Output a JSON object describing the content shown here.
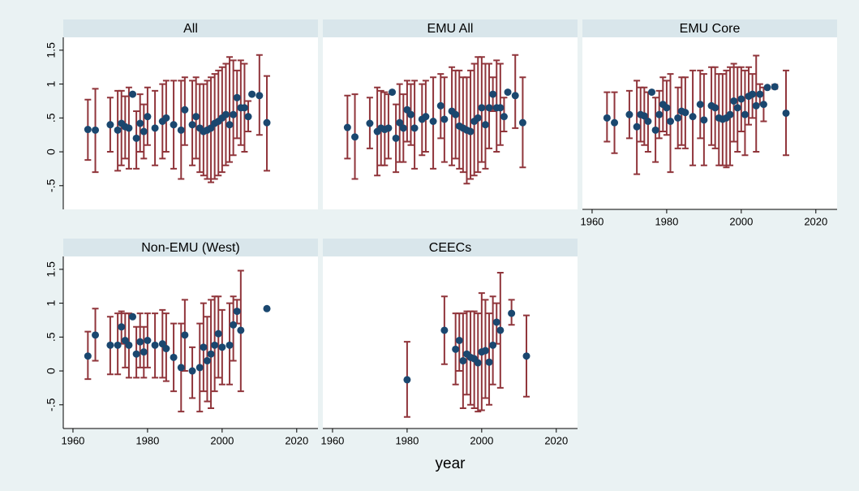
{
  "chart_data": [
    {
      "type": "scatter",
      "title": "All",
      "xlim": [
        1957.4,
        2025.7
      ],
      "ylim": [
        -0.85,
        1.69
      ],
      "yticks": [
        {
          "value": -0.5,
          "label": "-.5"
        },
        0,
        {
          "value": 0.5,
          "label": ".5"
        },
        1,
        1.5
      ],
      "point_color": "#1a476f",
      "bar_color": "#90353b",
      "x": [
        1964,
        1966,
        1970,
        1972,
        1973,
        1974,
        1975,
        1976,
        1977,
        1978,
        1979,
        1980,
        1982,
        1984,
        1985,
        1987,
        1989,
        1990,
        1992,
        1993,
        1994,
        1995,
        1996,
        1997,
        1998,
        1999,
        2000,
        2001,
        2002,
        2003,
        2004,
        2005,
        2006,
        2007,
        2008,
        2010,
        2012
      ],
      "values": [
        0.33,
        0.32,
        0.4,
        0.32,
        0.42,
        0.37,
        0.35,
        0.85,
        0.2,
        0.42,
        0.3,
        0.52,
        0.35,
        0.45,
        0.5,
        0.4,
        0.32,
        0.62,
        0.4,
        0.52,
        0.35,
        0.3,
        0.32,
        0.35,
        0.42,
        0.45,
        0.5,
        0.55,
        0.4,
        0.55,
        0.8,
        0.65,
        0.65,
        0.52,
        0.85,
        0.83,
        0.43
      ],
      "lower": [
        -0.12,
        -0.3,
        0.0,
        -0.28,
        -0.2,
        -0.1,
        -0.25,
        0.85,
        -0.25,
        0.0,
        -0.1,
        0.1,
        -0.2,
        -0.1,
        0.0,
        -0.25,
        -0.4,
        0.1,
        -0.2,
        -0.1,
        -0.3,
        -0.35,
        -0.4,
        -0.45,
        -0.4,
        -0.35,
        -0.3,
        -0.2,
        -0.15,
        -0.05,
        0.2,
        0.1,
        0.0,
        0.3,
        0.85,
        0.25,
        -0.28
      ],
      "upper": [
        0.77,
        0.93,
        0.8,
        0.9,
        0.9,
        0.82,
        0.95,
        0.85,
        0.6,
        0.85,
        0.7,
        0.95,
        0.9,
        1.0,
        1.05,
        1.05,
        1.05,
        1.1,
        1.05,
        1.1,
        1.0,
        1.0,
        1.05,
        1.1,
        1.15,
        1.2,
        1.25,
        1.3,
        1.4,
        1.35,
        1.2,
        1.35,
        1.3,
        0.75,
        0.85,
        1.43,
        1.12
      ]
    },
    {
      "type": "scatter",
      "title": "EMU All",
      "xlim": [
        1957.4,
        2025.7
      ],
      "ylim": [
        -0.85,
        1.69
      ],
      "point_color": "#1a476f",
      "bar_color": "#90353b",
      "x": [
        1964,
        1966,
        1970,
        1972,
        1973,
        1974,
        1975,
        1976,
        1977,
        1978,
        1979,
        1980,
        1981,
        1982,
        1984,
        1985,
        1987,
        1989,
        1990,
        1992,
        1993,
        1994,
        1995,
        1996,
        1997,
        1998,
        1999,
        2000,
        2001,
        2002,
        2003,
        2004,
        2005,
        2006,
        2007,
        2009,
        2011
      ],
      "values": [
        0.36,
        0.22,
        0.42,
        0.3,
        0.35,
        0.33,
        0.35,
        0.88,
        0.2,
        0.43,
        0.35,
        0.62,
        0.55,
        0.35,
        0.48,
        0.52,
        0.45,
        0.68,
        0.48,
        0.6,
        0.55,
        0.38,
        0.35,
        0.32,
        0.3,
        0.45,
        0.5,
        0.65,
        0.4,
        0.65,
        0.85,
        0.65,
        0.65,
        0.52,
        0.88,
        0.83,
        0.43
      ],
      "lower": [
        -0.1,
        -0.4,
        0.05,
        -0.35,
        -0.2,
        -0.2,
        -0.1,
        0.88,
        -0.3,
        -0.15,
        -0.15,
        0.15,
        0.1,
        -0.25,
        -0.05,
        0.0,
        -0.25,
        0.2,
        -0.15,
        -0.2,
        -0.1,
        -0.25,
        -0.3,
        -0.47,
        -0.4,
        -0.35,
        -0.3,
        -0.15,
        -0.25,
        0.05,
        0.6,
        0.0,
        0.1,
        0.3,
        0.88,
        0.35,
        -0.23
      ],
      "upper": [
        0.83,
        0.85,
        0.8,
        0.95,
        0.9,
        0.88,
        0.85,
        0.88,
        0.7,
        1.0,
        0.85,
        1.05,
        1.0,
        1.05,
        1.0,
        1.05,
        1.1,
        1.15,
        1.1,
        1.25,
        1.2,
        1.2,
        1.1,
        1.1,
        1.2,
        1.3,
        1.4,
        1.4,
        1.3,
        1.3,
        1.1,
        1.35,
        1.3,
        0.8,
        0.88,
        1.43,
        1.1
      ]
    },
    {
      "type": "scatter",
      "title": "EMU Core",
      "xlim": [
        1957.4,
        2025.7
      ],
      "ylim": [
        -0.85,
        1.69
      ],
      "xticks": [
        1960,
        1980,
        2000,
        2020
      ],
      "point_color": "#1a476f",
      "bar_color": "#90353b",
      "x": [
        1964,
        1966,
        1970,
        1972,
        1973,
        1974,
        1975,
        1976,
        1977,
        1978,
        1979,
        1980,
        1981,
        1983,
        1984,
        1985,
        1987,
        1989,
        1990,
        1992,
        1993,
        1994,
        1995,
        1996,
        1997,
        1998,
        1999,
        2000,
        2001,
        2002,
        2003,
        2004,
        2005,
        2006,
        2007,
        2009,
        2012
      ],
      "values": [
        0.5,
        0.43,
        0.55,
        0.37,
        0.55,
        0.53,
        0.45,
        0.88,
        0.32,
        0.55,
        0.7,
        0.65,
        0.45,
        0.5,
        0.6,
        0.58,
        0.52,
        0.7,
        0.47,
        0.68,
        0.65,
        0.5,
        0.48,
        0.5,
        0.55,
        0.75,
        0.65,
        0.78,
        0.55,
        0.82,
        0.85,
        0.68,
        0.85,
        0.7,
        0.95,
        0.96,
        0.57
      ],
      "lower": [
        0.15,
        -0.02,
        0.2,
        -0.33,
        0.15,
        0.1,
        0.0,
        0.88,
        -0.15,
        0.2,
        0.3,
        0.25,
        -0.3,
        0.05,
        0.1,
        0.05,
        -0.2,
        0.2,
        -0.2,
        0.1,
        0.05,
        -0.2,
        -0.2,
        -0.23,
        -0.2,
        0.15,
        0.0,
        0.3,
        -0.05,
        0.4,
        0.5,
        0.0,
        0.7,
        0.45,
        0.95,
        0.93,
        -0.05
      ],
      "upper": [
        0.88,
        0.88,
        0.9,
        1.05,
        0.95,
        0.95,
        0.88,
        0.88,
        0.8,
        0.9,
        1.1,
        1.05,
        1.15,
        0.95,
        1.1,
        1.1,
        1.2,
        1.2,
        1.15,
        1.25,
        1.25,
        1.15,
        1.15,
        1.2,
        1.25,
        1.3,
        1.25,
        1.25,
        1.2,
        1.25,
        1.15,
        1.42,
        1.0,
        0.95,
        0.95,
        0.99,
        1.2
      ]
    },
    {
      "type": "scatter",
      "title": "Non-EMU (West)",
      "xlim": [
        1957.4,
        2025.7
      ],
      "ylim": [
        -0.85,
        1.69
      ],
      "yticks": [
        {
          "value": -0.5,
          "label": "-.5"
        },
        0,
        {
          "value": 0.5,
          "label": ".5"
        },
        1,
        1.5
      ],
      "xticks": [
        1960,
        1980,
        2000,
        2020
      ],
      "point_color": "#1a476f",
      "bar_color": "#90353b",
      "x": [
        1964,
        1966,
        1970,
        1972,
        1973,
        1974,
        1975,
        1976,
        1977,
        1978,
        1979,
        1980,
        1982,
        1984,
        1985,
        1987,
        1989,
        1990,
        1992,
        1994,
        1995,
        1996,
        1997,
        1998,
        1999,
        2000,
        2002,
        2003,
        2004,
        2005,
        2012
      ],
      "values": [
        0.22,
        0.53,
        0.38,
        0.38,
        0.65,
        0.45,
        0.38,
        0.8,
        0.25,
        0.43,
        0.28,
        0.45,
        0.38,
        0.4,
        0.33,
        0.2,
        0.05,
        0.53,
        0.0,
        0.05,
        0.35,
        0.15,
        0.25,
        0.38,
        0.55,
        0.35,
        0.38,
        0.68,
        0.88,
        0.6,
        0.92
      ],
      "lower": [
        -0.12,
        0.15,
        -0.05,
        -0.05,
        0.4,
        0.05,
        -0.1,
        0.8,
        -0.1,
        0.05,
        -0.1,
        0.05,
        -0.1,
        -0.1,
        -0.15,
        -0.3,
        -0.6,
        0.0,
        -0.4,
        -0.6,
        -0.3,
        -0.45,
        -0.55,
        -0.3,
        -0.1,
        -0.2,
        -0.2,
        0.15,
        0.7,
        -0.3,
        0.92
      ],
      "upper": [
        0.58,
        0.92,
        0.8,
        0.85,
        0.88,
        0.85,
        0.85,
        0.8,
        0.65,
        0.85,
        0.65,
        0.85,
        0.85,
        0.9,
        0.85,
        0.7,
        0.7,
        1.05,
        0.35,
        0.7,
        1.0,
        0.8,
        1.05,
        1.1,
        1.1,
        0.9,
        1.0,
        1.1,
        1.05,
        1.48,
        0.92
      ]
    },
    {
      "type": "scatter",
      "title": "CEECs",
      "xlim": [
        1957.4,
        2025.7
      ],
      "ylim": [
        -0.85,
        1.69
      ],
      "xticks": [
        1960,
        1980,
        2000,
        2020
      ],
      "point_color": "#1a476f",
      "bar_color": "#90353b",
      "x": [
        1980,
        1990,
        1993,
        1994,
        1995,
        1996,
        1997,
        1998,
        1999,
        2000,
        2001,
        2002,
        2003,
        2004,
        2005,
        2008,
        2012
      ],
      "values": [
        -0.13,
        0.6,
        0.32,
        0.45,
        0.15,
        0.25,
        0.2,
        0.18,
        0.12,
        0.28,
        0.3,
        0.13,
        0.38,
        0.72,
        0.6,
        0.85,
        0.22
      ],
      "lower": [
        -0.68,
        0.1,
        -0.2,
        0.0,
        -0.55,
        -0.35,
        -0.5,
        -0.55,
        -0.6,
        -0.58,
        -0.4,
        -0.5,
        -0.2,
        0.4,
        -0.25,
        0.68,
        -0.38
      ],
      "upper": [
        0.43,
        1.1,
        0.85,
        0.85,
        0.85,
        0.88,
        0.88,
        0.88,
        0.85,
        1.15,
        1.05,
        0.85,
        1.1,
        1.0,
        1.45,
        1.05,
        0.82
      ]
    }
  ],
  "x_label": "year"
}
